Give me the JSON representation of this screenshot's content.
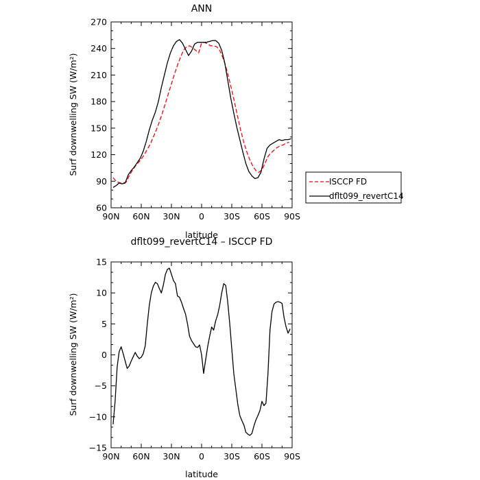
{
  "chart_data": [
    {
      "type": "line",
      "title": "ANN",
      "xlabel": "latitude",
      "ylabel": "Surf downwelling SW (W/m²)",
      "x_ticks": [
        90,
        60,
        30,
        0,
        -30,
        -60,
        -90
      ],
      "x_tick_labels": [
        "90N",
        "60N",
        "30N",
        "0",
        "30S",
        "60S",
        "90S"
      ],
      "xlim": [
        90,
        -90
      ],
      "ylim": [
        60,
        270
      ],
      "y_ticks": [
        60,
        90,
        120,
        150,
        180,
        210,
        240,
        270
      ],
      "grid": false,
      "legend_position": "right",
      "series": [
        {
          "name": "ISCCP FD",
          "color": "#ff0000",
          "dashed": true,
          "x": [
            88,
            85,
            81,
            78,
            75,
            72,
            69,
            66,
            63,
            60,
            57,
            54,
            51,
            48,
            45,
            42,
            39,
            36,
            33,
            30,
            27,
            24,
            21,
            18,
            15,
            12,
            9,
            6,
            3,
            0,
            -3,
            -6,
            -9,
            -12,
            -15,
            -18,
            -21,
            -24,
            -27,
            -30,
            -33,
            -36,
            -39,
            -42,
            -45,
            -48,
            -51,
            -54,
            -57,
            -60,
            -63,
            -66,
            -69,
            -72,
            -75,
            -78,
            -81,
            -84,
            -87
          ],
          "y": [
            94,
            90,
            88,
            88,
            89,
            96,
            102,
            107,
            111,
            115,
            120,
            126,
            132,
            140,
            148,
            157,
            167,
            178,
            189,
            200,
            211,
            221,
            230,
            238,
            242,
            243,
            241,
            238,
            235,
            246,
            247,
            245,
            243,
            243,
            242,
            238,
            230,
            220,
            207,
            193,
            178,
            162,
            147,
            134,
            123,
            114,
            107,
            102,
            100,
            103,
            110,
            118,
            122,
            125,
            128,
            130,
            131,
            133,
            134
          ]
        },
        {
          "name": "dflt099_revertC14",
          "color": "#000000",
          "dashed": false,
          "x": [
            88,
            85,
            82,
            79,
            76,
            73,
            70,
            67,
            64,
            61,
            58,
            55,
            52,
            49,
            46,
            43,
            40,
            37,
            34,
            31,
            28,
            25,
            22,
            19,
            16,
            13,
            10,
            7,
            4,
            1,
            -2,
            -5,
            -8,
            -11,
            -14,
            -17,
            -20,
            -23,
            -26,
            -29,
            -32,
            -35,
            -38,
            -41,
            -44,
            -47,
            -50,
            -53,
            -56,
            -59,
            -62,
            -65,
            -68,
            -71,
            -74,
            -77,
            -80,
            -83,
            -86,
            -89
          ],
          "y": [
            83,
            85,
            88,
            87,
            88,
            97,
            102,
            106,
            111,
            116,
            124,
            135,
            148,
            159,
            168,
            180,
            196,
            210,
            224,
            235,
            243,
            248,
            250,
            246,
            239,
            232,
            237,
            245,
            247,
            247,
            247,
            247,
            248,
            249,
            249,
            246,
            238,
            224,
            204,
            184,
            167,
            151,
            137,
            123,
            110,
            101,
            96,
            93,
            94,
            100,
            115,
            127,
            131,
            133,
            135,
            137,
            136,
            137,
            137,
            138
          ]
        }
      ]
    },
    {
      "type": "line",
      "title": "dflt099_revertC14 – ISCCP FD",
      "xlabel": "latitude",
      "ylabel": "Surf downwelling SW (W/m²)",
      "x_ticks": [
        90,
        60,
        30,
        0,
        -30,
        -60,
        -90
      ],
      "x_tick_labels": [
        "90N",
        "60N",
        "30N",
        "0",
        "30S",
        "60S",
        "90S"
      ],
      "xlim": [
        90,
        -90
      ],
      "ylim": [
        -15,
        15
      ],
      "y_ticks": [
        -15,
        -10,
        -5,
        0,
        5,
        10,
        15
      ],
      "y_tick_labels": [
        "−15",
        "−10",
        "−5",
        "0",
        "5",
        "10",
        "15"
      ],
      "grid": false,
      "series": [
        {
          "name": "",
          "color": "#000000",
          "dashed": false,
          "x": [
            88,
            86,
            84,
            82,
            80,
            78,
            76,
            74,
            72,
            70,
            68,
            66,
            64,
            62,
            60,
            58,
            56,
            54,
            52,
            50,
            48,
            46,
            44,
            42,
            40,
            38,
            36,
            34,
            32,
            30,
            28,
            26,
            24,
            22,
            20,
            18,
            16,
            14,
            12,
            10,
            8,
            6,
            4,
            2,
            0,
            -2,
            -4,
            -6,
            -8,
            -10,
            -12,
            -14,
            -16,
            -18,
            -20,
            -22,
            -24,
            -26,
            -28,
            -30,
            -32,
            -34,
            -36,
            -38,
            -40,
            -42,
            -44,
            -46,
            -48,
            -50,
            -52,
            -54,
            -56,
            -58,
            -60,
            -62,
            -64,
            -66,
            -68,
            -70,
            -72,
            -74,
            -76,
            -78,
            -80,
            -82,
            -84,
            -86,
            -88
          ],
          "y": [
            -11.2,
            -7.5,
            -2.0,
            0.5,
            1.3,
            0.2,
            -1.0,
            -2.2,
            -1.8,
            -1.0,
            -0.3,
            0.4,
            -0.2,
            -0.6,
            -0.4,
            0.2,
            1.5,
            5.0,
            8.0,
            10.0,
            11.1,
            11.7,
            11.5,
            10.7,
            10.0,
            11.3,
            13.0,
            13.8,
            14.0,
            13.0,
            12.0,
            11.5,
            9.5,
            9.3,
            8.5,
            7.5,
            6.6,
            5.0,
            3.0,
            2.3,
            1.8,
            1.3,
            1.2,
            1.6,
            0.0,
            -3.0,
            -0.8,
            1.3,
            3.0,
            4.5,
            4.0,
            5.5,
            6.5,
            8.0,
            10.0,
            11.5,
            11.2,
            8.5,
            5.0,
            1.0,
            -3.0,
            -5.5,
            -8.0,
            -9.8,
            -10.6,
            -11.3,
            -12.5,
            -12.8,
            -13.0,
            -12.7,
            -11.5,
            -10.5,
            -9.8,
            -9.0,
            -7.5,
            -8.2,
            -7.8,
            -3.0,
            4.0,
            7.0,
            8.2,
            8.5,
            8.6,
            8.5,
            8.3,
            6.0,
            4.5,
            3.5,
            4.2
          ]
        }
      ]
    }
  ]
}
